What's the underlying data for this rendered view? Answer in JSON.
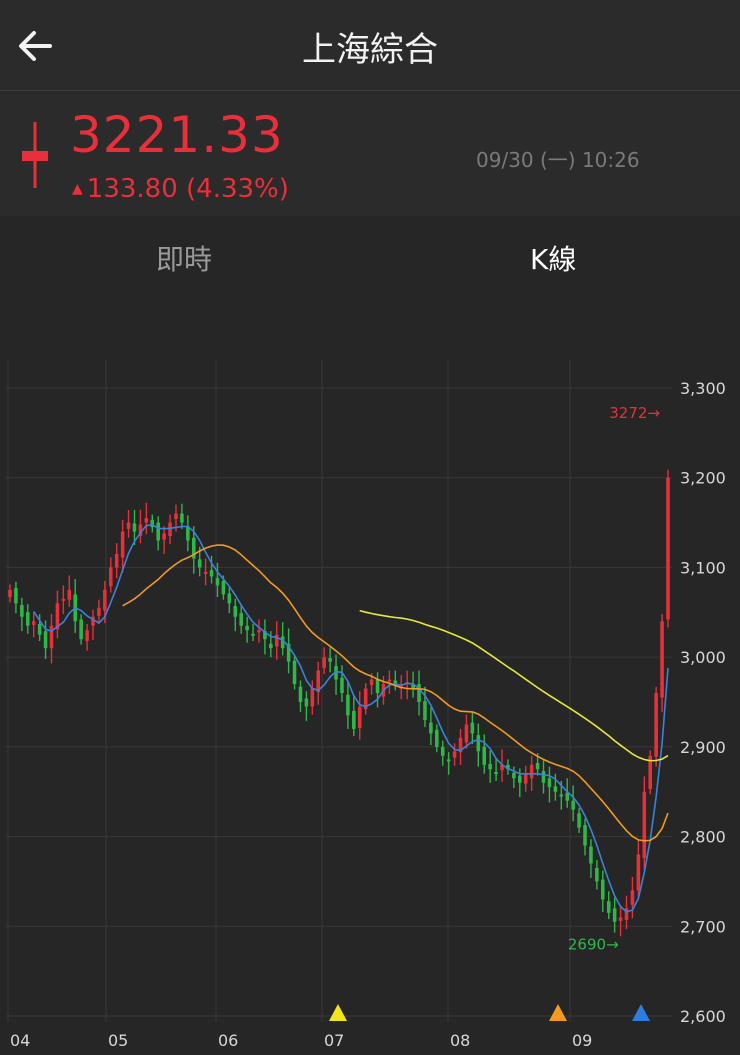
{
  "header": {
    "title": "上海綜合",
    "back_icon": "arrow-left-icon"
  },
  "quote": {
    "price": "3221.33",
    "change": "133.80 (4.33%)",
    "change_direction": "up",
    "datetime": "09/30 (一) 10:26",
    "up_color": "#e8303a",
    "down_color": "#2eb84a"
  },
  "tabs": [
    {
      "label": "即時",
      "active": false
    },
    {
      "label": "K線",
      "active": true
    }
  ],
  "chart_data": {
    "type": "candlestick",
    "x_tick_labels": [
      "04",
      "05",
      "06",
      "07",
      "08",
      "09"
    ],
    "y_tick_labels": [
      "3,300",
      "3,200",
      "3,100",
      "3,000",
      "2,900",
      "2,800",
      "2,700",
      "2,600"
    ],
    "ylim": [
      2600,
      3300
    ],
    "high_marker": {
      "label": "3272→",
      "value": 3272
    },
    "low_marker": {
      "label": "2690→",
      "value": 2690
    },
    "signal_markers": [
      {
        "month": "07",
        "color": "#f3e51c"
      },
      {
        "month": "09",
        "color": "#f29b20"
      },
      {
        "month": "09",
        "color": "#2f7de0"
      }
    ],
    "moving_average_colors": [
      "#3b82d8",
      "#f29b20",
      "#e8e83a"
    ],
    "closes": [
      3075,
      3060,
      3045,
      3035,
      3040,
      3025,
      3010,
      3035,
      3060,
      3065,
      3075,
      3040,
      3020,
      3030,
      3045,
      3055,
      3075,
      3100,
      3115,
      3140,
      3150,
      3140,
      3148,
      3155,
      3145,
      3130,
      3138,
      3150,
      3160,
      3150,
      3130,
      3110,
      3100,
      3095,
      3090,
      3080,
      3070,
      3060,
      3045,
      3035,
      3030,
      3025,
      3030,
      3020,
      3010,
      3025,
      3010,
      2995,
      2970,
      2950,
      2945,
      2965,
      2985,
      3000,
      2995,
      2975,
      2960,
      2935,
      2920,
      2945,
      2965,
      2975,
      2960,
      2970,
      2975,
      2970,
      2968,
      2972,
      2965,
      2950,
      2930,
      2915,
      2900,
      2890,
      2885,
      2895,
      2910,
      2925,
      2915,
      2895,
      2880,
      2875,
      2870,
      2880,
      2875,
      2865,
      2860,
      2870,
      2880,
      2875,
      2860,
      2855,
      2850,
      2845,
      2840,
      2830,
      2810,
      2790,
      2770,
      2750,
      2730,
      2715,
      2705,
      2710,
      2720,
      2740,
      2780,
      2850,
      2890,
      2960,
      3040,
      3200
    ]
  }
}
